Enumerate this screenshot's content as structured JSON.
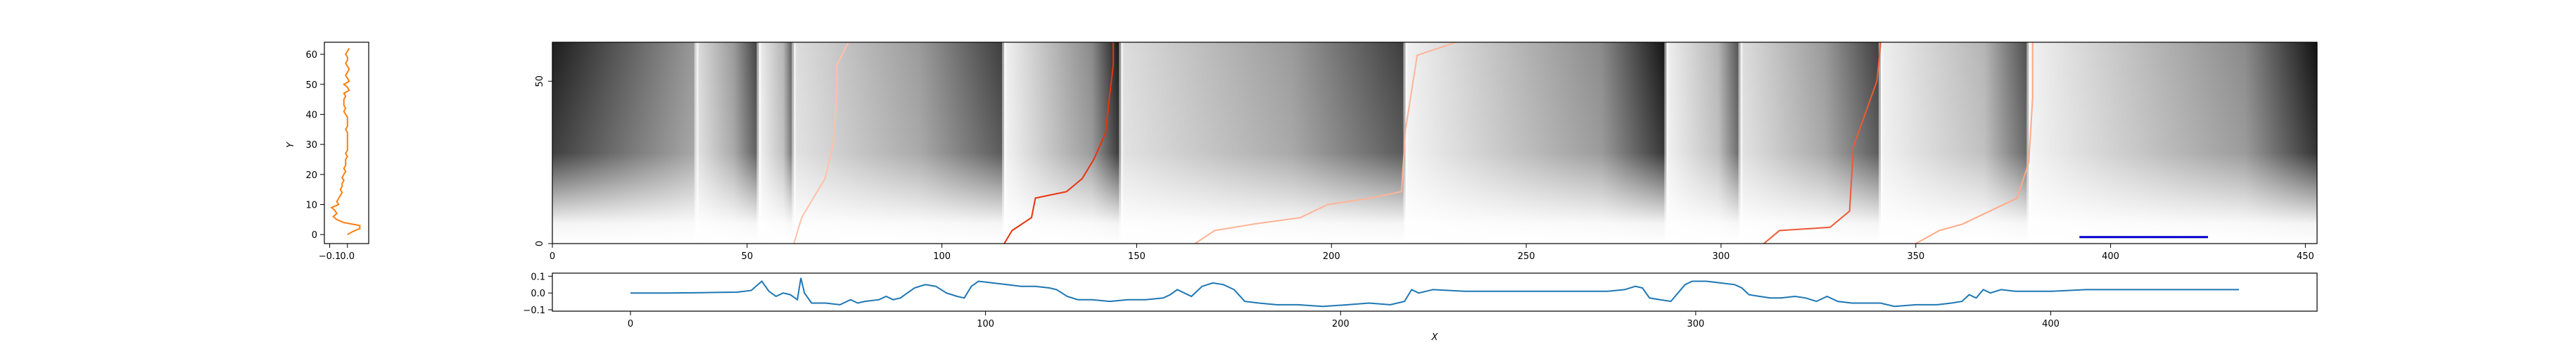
{
  "chart_data": [
    {
      "id": "left",
      "type": "line",
      "orientation": "vertical",
      "ylabel": "Y",
      "xlabel": "",
      "xlim": [
        -0.13,
        0.12
      ],
      "ylim": [
        -3,
        64
      ],
      "xticks": [
        -0.1,
        0.0
      ],
      "xtick_labels": [
        "−0.1",
        "0.0"
      ],
      "yticks": [
        0,
        10,
        20,
        30,
        40,
        50,
        60
      ],
      "ytick_labels": [
        "0",
        "10",
        "20",
        "30",
        "40",
        "50",
        "60"
      ],
      "color": "#ff7f0e",
      "points": [
        [
          0.0,
          0
        ],
        [
          0.03,
          1
        ],
        [
          0.07,
          2
        ],
        [
          0.07,
          3
        ],
        [
          -0.02,
          4
        ],
        [
          -0.06,
          5
        ],
        [
          -0.08,
          6
        ],
        [
          -0.06,
          7
        ],
        [
          -0.07,
          8
        ],
        [
          -0.09,
          9
        ],
        [
          -0.05,
          10
        ],
        [
          -0.06,
          11
        ],
        [
          -0.05,
          12
        ],
        [
          -0.04,
          13
        ],
        [
          -0.03,
          14
        ],
        [
          -0.04,
          15
        ],
        [
          -0.03,
          16
        ],
        [
          -0.03,
          17
        ],
        [
          -0.02,
          18
        ],
        [
          -0.03,
          19
        ],
        [
          -0.02,
          20
        ],
        [
          -0.01,
          21
        ],
        [
          -0.02,
          22
        ],
        [
          -0.01,
          23
        ],
        [
          -0.01,
          24
        ],
        [
          -0.01,
          25
        ],
        [
          0.0,
          26
        ],
        [
          -0.01,
          27
        ],
        [
          0.0,
          28
        ],
        [
          0.0,
          29
        ],
        [
          0.0,
          30
        ],
        [
          0.0,
          31
        ],
        [
          0.0,
          32
        ],
        [
          0.0,
          33
        ],
        [
          0.0,
          34
        ],
        [
          -0.01,
          35
        ],
        [
          0.0,
          36
        ],
        [
          0.0,
          37
        ],
        [
          0.0,
          38
        ],
        [
          0.0,
          39
        ],
        [
          -0.01,
          40
        ],
        [
          -0.02,
          41
        ],
        [
          -0.01,
          42
        ],
        [
          -0.02,
          43
        ],
        [
          -0.02,
          44
        ],
        [
          -0.02,
          45
        ],
        [
          -0.01,
          46
        ],
        [
          -0.02,
          47
        ],
        [
          0.01,
          48
        ],
        [
          0.0,
          49
        ],
        [
          -0.02,
          50
        ],
        [
          0.01,
          51
        ],
        [
          0.0,
          52
        ],
        [
          -0.01,
          53
        ],
        [
          0.0,
          54
        ],
        [
          0.01,
          55
        ],
        [
          0.0,
          56
        ],
        [
          -0.01,
          57
        ],
        [
          0.0,
          58
        ],
        [
          0.0,
          59
        ],
        [
          -0.01,
          60
        ],
        [
          0.0,
          61
        ],
        [
          0.01,
          62
        ]
      ]
    },
    {
      "id": "main",
      "type": "heatmap",
      "colormap": "gray_r",
      "xlim": [
        0,
        453
      ],
      "ylim": [
        0,
        62
      ],
      "xticks": [
        0,
        50,
        100,
        150,
        200,
        250,
        300,
        350,
        400,
        450
      ],
      "xtick_labels": [
        "0",
        "50",
        "100",
        "150",
        "200",
        "250",
        "300",
        "350",
        "400",
        "450"
      ],
      "yticks": [
        0,
        50
      ],
      "ytick_labels": [
        "0",
        "50"
      ],
      "segment_boundaries": [
        37,
        53,
        62,
        116,
        146,
        219,
        286,
        305,
        341,
        379
      ],
      "paths": [
        {
          "color": "#ffc0a8",
          "points": [
            [
              62,
              0
            ],
            [
              64,
              8
            ],
            [
              67,
              14
            ],
            [
              70,
              20
            ],
            [
              72,
              30
            ],
            [
              73,
              45
            ],
            [
              73,
              55
            ],
            [
              76,
              62
            ]
          ]
        },
        {
          "color": "#e8340f",
          "points": [
            [
              116,
              0
            ],
            [
              118,
              4
            ],
            [
              123,
              8
            ],
            [
              124,
              14
            ],
            [
              132,
              16
            ],
            [
              136,
              20
            ],
            [
              139,
              26
            ],
            [
              142,
              34
            ],
            [
              143,
              45
            ],
            [
              144,
              55
            ],
            [
              144,
              62
            ]
          ]
        },
        {
          "color": "#ffb498",
          "points": [
            [
              165,
              0
            ],
            [
              170,
              4
            ],
            [
              180,
              6
            ],
            [
              192,
              8
            ],
            [
              199,
              12
            ],
            [
              210,
              14
            ],
            [
              218,
              16
            ],
            [
              219,
              35
            ],
            [
              222,
              58
            ],
            [
              232,
              62
            ]
          ]
        },
        {
          "color": "#ee5a35",
          "points": [
            [
              311,
              0
            ],
            [
              315,
              4
            ],
            [
              328,
              5
            ],
            [
              333,
              10
            ],
            [
              334,
              30
            ],
            [
              340,
              50
            ],
            [
              341,
              62
            ]
          ]
        },
        {
          "color": "#ffa987",
          "points": [
            [
              350,
              0
            ],
            [
              356,
              4
            ],
            [
              362,
              6
            ],
            [
              369,
              10
            ],
            [
              376,
              14
            ],
            [
              379,
              25
            ],
            [
              380,
              45
            ],
            [
              380,
              62
            ]
          ]
        }
      ],
      "annotations": [
        {
          "type": "segment",
          "color": "#0000cc",
          "x": [
            392,
            425
          ],
          "y": 2
        }
      ]
    },
    {
      "id": "bottom",
      "type": "line",
      "xlabel": "X",
      "ylabel": "",
      "xlim": [
        -22,
        475
      ],
      "ylim": [
        -0.1,
        0.11
      ],
      "xticks": [
        0,
        100,
        200,
        300,
        400
      ],
      "xtick_labels": [
        "0",
        "100",
        "200",
        "300",
        "400"
      ],
      "yticks": [
        -0.1,
        0.0,
        0.1
      ],
      "ytick_labels": [
        "−0.1",
        "0.0",
        "0.1"
      ],
      "color": "#1f77b4",
      "points": [
        [
          0,
          0.0
        ],
        [
          10,
          0.0
        ],
        [
          20,
          0.002
        ],
        [
          30,
          0.005
        ],
        [
          34,
          0.015
        ],
        [
          37,
          0.07
        ],
        [
          39,
          0.01
        ],
        [
          41,
          -0.02
        ],
        [
          43,
          0.0
        ],
        [
          45,
          -0.01
        ],
        [
          47,
          -0.04
        ],
        [
          48,
          0.09
        ],
        [
          49,
          0.0
        ],
        [
          51,
          -0.06
        ],
        [
          55,
          -0.06
        ],
        [
          59,
          -0.07
        ],
        [
          62,
          -0.04
        ],
        [
          64,
          -0.06
        ],
        [
          66,
          -0.05
        ],
        [
          70,
          -0.04
        ],
        [
          72,
          -0.02
        ],
        [
          74,
          -0.04
        ],
        [
          76,
          -0.03
        ],
        [
          78,
          0.0
        ],
        [
          80,
          0.03
        ],
        [
          83,
          0.05
        ],
        [
          86,
          0.04
        ],
        [
          89,
          0.0
        ],
        [
          92,
          -0.02
        ],
        [
          94,
          -0.03
        ],
        [
          96,
          0.04
        ],
        [
          98,
          0.07
        ],
        [
          102,
          0.06
        ],
        [
          106,
          0.05
        ],
        [
          110,
          0.04
        ],
        [
          114,
          0.04
        ],
        [
          118,
          0.03
        ],
        [
          120,
          0.02
        ],
        [
          123,
          -0.02
        ],
        [
          126,
          -0.04
        ],
        [
          130,
          -0.04
        ],
        [
          135,
          -0.05
        ],
        [
          140,
          -0.04
        ],
        [
          145,
          -0.04
        ],
        [
          150,
          -0.03
        ],
        [
          152,
          -0.01
        ],
        [
          154,
          0.02
        ],
        [
          156,
          0.0
        ],
        [
          158,
          -0.02
        ],
        [
          161,
          0.04
        ],
        [
          164,
          0.06
        ],
        [
          167,
          0.05
        ],
        [
          170,
          0.02
        ],
        [
          173,
          -0.05
        ],
        [
          177,
          -0.06
        ],
        [
          182,
          -0.07
        ],
        [
          188,
          -0.07
        ],
        [
          195,
          -0.08
        ],
        [
          202,
          -0.07
        ],
        [
          208,
          -0.06
        ],
        [
          214,
          -0.07
        ],
        [
          218,
          -0.05
        ],
        [
          220,
          0.02
        ],
        [
          222,
          0.0
        ],
        [
          226,
          0.02
        ],
        [
          235,
          0.01
        ],
        [
          245,
          0.01
        ],
        [
          255,
          0.01
        ],
        [
          265,
          0.01
        ],
        [
          275,
          0.01
        ],
        [
          280,
          0.02
        ],
        [
          283,
          0.04
        ],
        [
          285,
          0.03
        ],
        [
          287,
          -0.03
        ],
        [
          290,
          -0.04
        ],
        [
          293,
          -0.05
        ],
        [
          295,
          0.0
        ],
        [
          297,
          0.05
        ],
        [
          299,
          0.07
        ],
        [
          303,
          0.07
        ],
        [
          307,
          0.06
        ],
        [
          311,
          0.05
        ],
        [
          313,
          0.03
        ],
        [
          315,
          -0.01
        ],
        [
          318,
          -0.02
        ],
        [
          321,
          -0.03
        ],
        [
          324,
          -0.03
        ],
        [
          328,
          -0.02
        ],
        [
          331,
          -0.03
        ],
        [
          334,
          -0.05
        ],
        [
          337,
          -0.02
        ],
        [
          340,
          -0.05
        ],
        [
          344,
          -0.06
        ],
        [
          348,
          -0.06
        ],
        [
          352,
          -0.06
        ],
        [
          356,
          -0.08
        ],
        [
          362,
          -0.07
        ],
        [
          368,
          -0.07
        ],
        [
          372,
          -0.06
        ],
        [
          375,
          -0.05
        ],
        [
          377,
          -0.01
        ],
        [
          379,
          -0.03
        ],
        [
          381,
          0.02
        ],
        [
          383,
          0.0
        ],
        [
          386,
          0.02
        ],
        [
          390,
          0.01
        ],
        [
          400,
          0.01
        ],
        [
          410,
          0.02
        ],
        [
          420,
          0.02
        ],
        [
          430,
          0.02
        ],
        [
          440,
          0.02
        ],
        [
          450,
          0.02
        ],
        [
          453,
          0.02
        ]
      ]
    }
  ]
}
